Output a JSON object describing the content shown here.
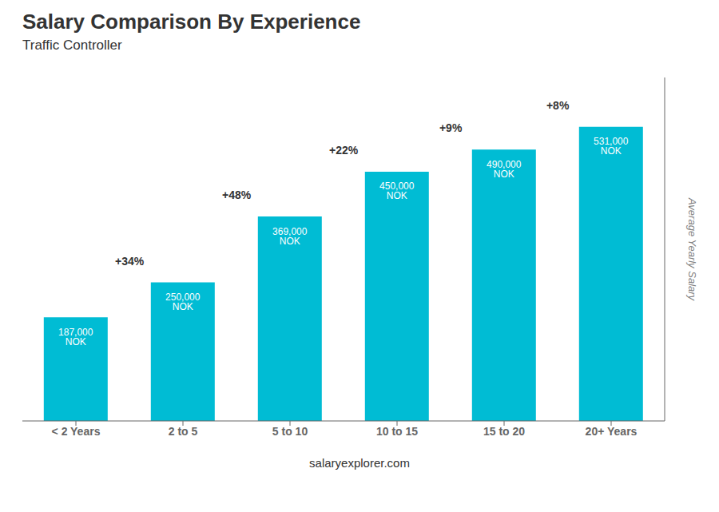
{
  "chart_data": {
    "type": "bar",
    "title": "Salary Comparison By Experience",
    "subtitle": "Traffic Controller",
    "categories": [
      "< 2 Years",
      "2 to 5",
      "5 to 10",
      "10 to 15",
      "15 to 20",
      "20+ Years"
    ],
    "values": [
      187000,
      250000,
      369000,
      450000,
      490000,
      531000
    ],
    "value_labels": [
      "187,000 NOK",
      "250,000 NOK",
      "369,000 NOK",
      "450,000 NOK",
      "490,000 NOK",
      "531,000 NOK"
    ],
    "data_labels": true,
    "annotations": [
      "+34%",
      "+48%",
      "+22%",
      "+9%",
      "+8%"
    ],
    "color": "#00bcd4",
    "ylim": [
      0,
      620000
    ],
    "ylabel": "Average Yearly Salary",
    "footer": "salaryexplorer.com",
    "tick_labels": "x"
  }
}
